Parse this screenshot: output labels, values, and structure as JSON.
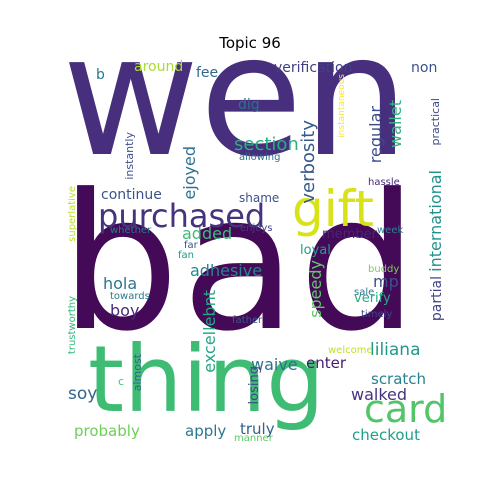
{
  "title": "Topic 96",
  "words": [
    {
      "text": "wen",
      "color": "#472f7d"
    },
    {
      "text": "bad",
      "color": "#440a57"
    },
    {
      "text": "thing",
      "color": "#3fbc73"
    },
    {
      "text": "gift",
      "color": "#d8e219"
    },
    {
      "text": "purchased",
      "color": "#46337e"
    },
    {
      "text": "card",
      "color": "#52c569"
    },
    {
      "text": "continue",
      "color": "#3b528b"
    },
    {
      "text": "ejoyed",
      "color": "#2c728e"
    },
    {
      "text": "section",
      "color": "#29af7f"
    },
    {
      "text": "verbosity",
      "color": "#375a8c"
    },
    {
      "text": "regular",
      "color": "#3e4a89"
    },
    {
      "text": "wallet",
      "color": "#2fb47c"
    },
    {
      "text": "verification",
      "color": "#433e85"
    },
    {
      "text": "non",
      "color": "#3b518b"
    },
    {
      "text": "around",
      "color": "#a8db34"
    },
    {
      "text": "fee",
      "color": "#31688e"
    },
    {
      "text": "b",
      "color": "#2a778e"
    },
    {
      "text": "dig",
      "color": "#2d718e"
    },
    {
      "text": "shame",
      "color": "#3b528b"
    },
    {
      "text": "added",
      "color": "#3dbc74"
    },
    {
      "text": "member",
      "color": "#482576"
    },
    {
      "text": "international",
      "color": "#21918c"
    },
    {
      "text": "hola",
      "color": "#2b758e"
    },
    {
      "text": "adhesive",
      "color": "#24868e"
    },
    {
      "text": "mp",
      "color": "#3b528b"
    },
    {
      "text": "loyal",
      "color": "#1f9e89"
    },
    {
      "text": "boy",
      "color": "#472c7a"
    },
    {
      "text": "speedy",
      "color": "#5ec962"
    },
    {
      "text": "verify",
      "color": "#25ab82"
    },
    {
      "text": "partial",
      "color": "#414487"
    },
    {
      "text": "excellebnt",
      "color": "#22a884"
    },
    {
      "text": "liliana",
      "color": "#1f9a8a"
    },
    {
      "text": "waive",
      "color": "#2c728e"
    },
    {
      "text": "enter",
      "color": "#481a6c"
    },
    {
      "text": "scratch",
      "color": "#26828e"
    },
    {
      "text": "walked",
      "color": "#46327e"
    },
    {
      "text": "soy",
      "color": "#33638d"
    },
    {
      "text": "probably",
      "color": "#6ece58"
    },
    {
      "text": "apply",
      "color": "#2a788e"
    },
    {
      "text": "truly",
      "color": "#34608d"
    },
    {
      "text": "checkout",
      "color": "#1fa088"
    },
    {
      "text": "losing",
      "color": "#3e4989"
    },
    {
      "text": "almost",
      "color": "#33638d"
    },
    {
      "text": "c",
      "color": "#4ac16d"
    },
    {
      "text": "manner",
      "color": "#5ec962"
    },
    {
      "text": "instantly",
      "color": "#3b528b"
    },
    {
      "text": "allowing",
      "color": "#2d708e"
    },
    {
      "text": "instantaneous",
      "color": "#fde725"
    },
    {
      "text": "practical",
      "color": "#3e4a89"
    },
    {
      "text": "hassle",
      "color": "#472a7a"
    },
    {
      "text": "superlative",
      "color": "#bddf26"
    },
    {
      "text": "whether",
      "color": "#2a788e"
    },
    {
      "text": "enjoys",
      "color": "#443a83"
    },
    {
      "text": "far",
      "color": "#3a548c"
    },
    {
      "text": "fan",
      "color": "#1f998a"
    },
    {
      "text": "week",
      "color": "#24868e"
    },
    {
      "text": "towards",
      "color": "#2a788e"
    },
    {
      "text": "buddy",
      "color": "#7ad151"
    },
    {
      "text": "sale",
      "color": "#2a768e"
    },
    {
      "text": "timely",
      "color": "#3f4788"
    },
    {
      "text": "trustworthy",
      "color": "#35b779"
    },
    {
      "text": "father",
      "color": "#38598c"
    },
    {
      "text": "welcome",
      "color": "#c2df23"
    }
  ]
}
